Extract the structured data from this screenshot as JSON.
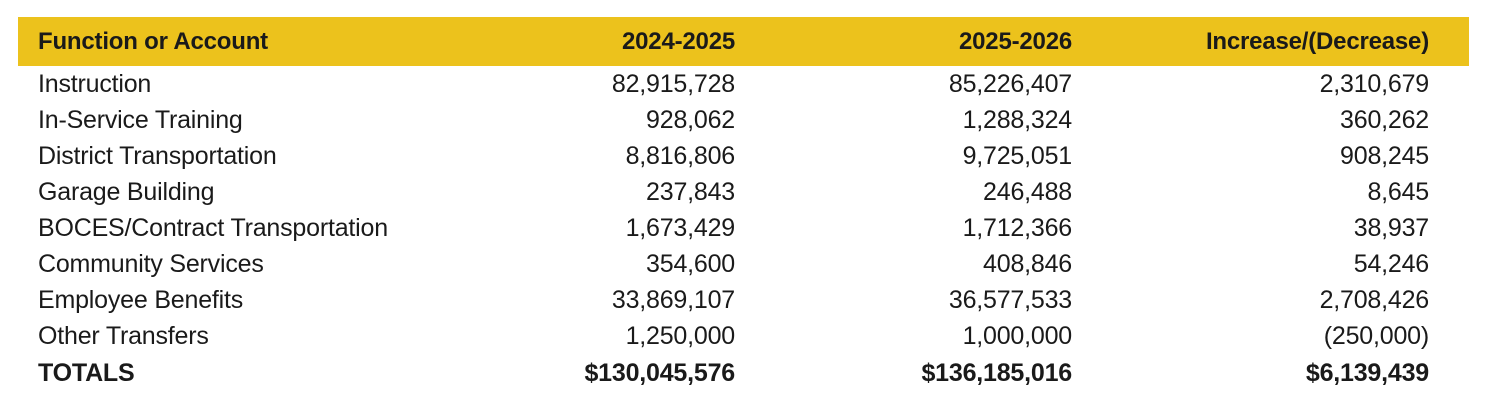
{
  "table": {
    "header_color": "#ecc21c",
    "columns": [
      "Function or Account",
      "2024-2025",
      "2025-2026",
      "Increase/(Decrease)"
    ],
    "rows": [
      [
        "Instruction",
        "82,915,728",
        "85,226,407",
        "2,310,679"
      ],
      [
        "In-Service Training",
        "928,062",
        "1,288,324",
        "360,262"
      ],
      [
        "District Transportation",
        "8,816,806",
        "9,725,051",
        "908,245"
      ],
      [
        "Garage Building",
        "237,843",
        "246,488",
        "8,645"
      ],
      [
        "BOCES/Contract Transportation",
        "1,673,429",
        "1,712,366",
        "38,937"
      ],
      [
        "Community Services",
        "354,600",
        "408,846",
        "54,246"
      ],
      [
        "Employee Benefits",
        "33,869,107",
        "36,577,533",
        "2,708,426"
      ],
      [
        "Other Transfers",
        "1,250,000",
        "1,000,000",
        "(250,000)"
      ]
    ],
    "totals": [
      "TOTALS",
      "$130,045,576",
      "$136,185,016",
      "$6,139,439"
    ]
  }
}
